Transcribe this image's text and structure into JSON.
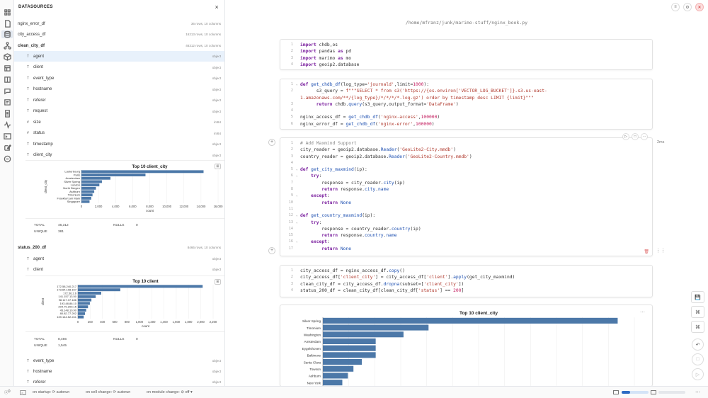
{
  "sidebar": {
    "title": "DATASOURCES",
    "close": "×",
    "datasets": [
      {
        "name": "nginx_error_df",
        "meta": "36 rows, 10 columns"
      },
      {
        "name": "city_access_df",
        "meta": "16213 rows, 10 columns"
      },
      {
        "name": "clean_city_df",
        "meta": "46312 rows, 10 columns"
      },
      {
        "name": "status_200_df",
        "meta": "8466 rows, 10 columns"
      }
    ],
    "clean_city_columns": [
      {
        "type": "T",
        "name": "agent",
        "dtype": "object"
      },
      {
        "type": "T",
        "name": "client",
        "dtype": "object"
      },
      {
        "type": "T",
        "name": "event_type",
        "dtype": "object"
      },
      {
        "type": "T",
        "name": "hostname",
        "dtype": "object"
      },
      {
        "type": "T",
        "name": "referer",
        "dtype": "object"
      },
      {
        "type": "T",
        "name": "request",
        "dtype": "object"
      },
      {
        "type": "#",
        "name": "size",
        "dtype": "int64"
      },
      {
        "type": "#",
        "name": "status",
        "dtype": "int64"
      },
      {
        "type": "T",
        "name": "timestamp",
        "dtype": "object"
      },
      {
        "type": "T",
        "name": "client_city",
        "dtype": "object"
      }
    ],
    "status_columns": [
      {
        "type": "T",
        "name": "agent",
        "dtype": "object"
      },
      {
        "type": "T",
        "name": "client",
        "dtype": "object"
      },
      {
        "type": "T",
        "name": "event_type",
        "dtype": "object"
      },
      {
        "type": "T",
        "name": "hostname",
        "dtype": "object"
      },
      {
        "type": "T",
        "name": "referer",
        "dtype": "object"
      }
    ],
    "stats1": {
      "total_label": "TOTAL",
      "total": "46,312",
      "nulls_label": "NULLS",
      "nulls": "0",
      "unique_label": "UNIQUE",
      "unique": "381"
    },
    "stats2": {
      "total_label": "TOTAL",
      "total": "8,466",
      "nulls_label": "NULLS",
      "nulls": "0",
      "unique_label": "UNIQUE",
      "unique": "1,545"
    }
  },
  "main": {
    "path": "/home/mfranz/junk/marimo-stuff/nginx_book.py",
    "cell3_time": "2ms"
  },
  "statusbar": {
    "errors": "0",
    "startup": "on startup: ⟳ autorun",
    "cell_change": "on cell change: ⟳ autorun",
    "module_change": "on module change: ⊘ off ▾"
  },
  "chart_data": [
    {
      "type": "bar",
      "title": "Top 10 client_city",
      "ylabel": "client_city",
      "xlabel": "count",
      "categories": [
        "Lauterbourg",
        "Paris",
        "Amsterdam",
        "Silver Spring",
        "London",
        "North Bergen",
        "Ashburn",
        "Timonium",
        "Frankfurt am Main",
        "Singapore"
      ],
      "values": [
        14300,
        7500,
        3400,
        2400,
        2100,
        1700,
        1500,
        1300,
        1150,
        950
      ],
      "ticks": [
        "0",
        "2,000",
        "4,000",
        "6,000",
        "8,000",
        "10,000",
        "12,000",
        "14,000",
        "16,000"
      ],
      "xlim": [
        0,
        16000
      ]
    },
    {
      "type": "bar",
      "title": "Top 10 client",
      "ylabel": "client",
      "xlabel": "count",
      "categories": [
        "172.58.240.217",
        "173.64.108.157",
        "172.56.2.6",
        "141.157.13.50",
        "98.117.37.186",
        "193.48.86.10",
        "204.79.200.15",
        "45.148.10.90",
        "80.82.77.202",
        "139.144.52.241"
      ],
      "values": [
        2030,
        690,
        380,
        290,
        220,
        195,
        165,
        135,
        115,
        95
      ],
      "ticks": [
        "0",
        "200",
        "400",
        "600",
        "800",
        "1,000",
        "1,200",
        "1,400",
        "1,600",
        "1,800",
        "2,000",
        "2,200"
      ],
      "xlim": [
        0,
        2200
      ]
    },
    {
      "type": "bar",
      "title": "Top 10 client_city",
      "categories": [
        "Silver Spring",
        "Timonium",
        "Washington",
        "Amsterdam",
        "Eygelshoven",
        "Baltimore",
        "Santa Clara",
        "Towson",
        "Ashburn",
        "New York"
      ],
      "values": [
        530,
        190,
        145,
        95,
        95,
        95,
        70,
        55,
        45,
        35
      ],
      "xlim": [
        0,
        560
      ]
    }
  ]
}
